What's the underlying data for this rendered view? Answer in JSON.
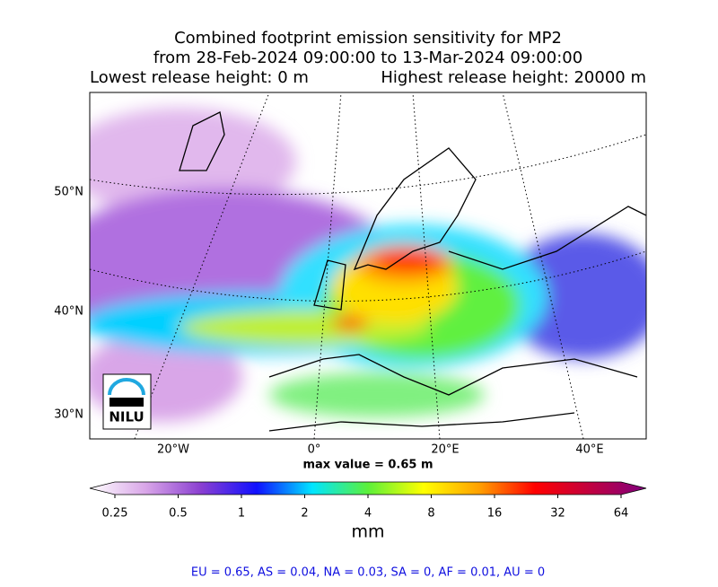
{
  "header": {
    "title_line1": "Combined footprint emission sensitivity for MP2",
    "title_line2": "from 28-Feb-2024 09:00:00 to 13-Mar-2024 09:00:00",
    "lowest": "Lowest release height: 0 m",
    "highest": "Highest release height: 20000 m"
  },
  "map": {
    "lat_labels": [
      "50°N",
      "40°N",
      "30°N"
    ],
    "lon_labels": [
      "20°W",
      "0°",
      "20°E",
      "40°E"
    ],
    "logo": "NILU",
    "max_value": "max value = 0.65 m"
  },
  "colorbar": {
    "ticks": [
      "0.25",
      "0.5",
      "1",
      "2",
      "4",
      "8",
      "16",
      "32",
      "64"
    ],
    "label": "mm",
    "colors": [
      "#ffffff",
      "#d9a6e8",
      "#8a3fd1",
      "#1010ff",
      "#00e5ff",
      "#5cf03a",
      "#ffff00",
      "#ffa000",
      "#ff0000",
      "#c00040",
      "#800080"
    ]
  },
  "footer": "EU = 0.65,  AS = 0.04,  NA = 0.03,  SA = 0,  AF = 0.01,  AU = 0"
}
